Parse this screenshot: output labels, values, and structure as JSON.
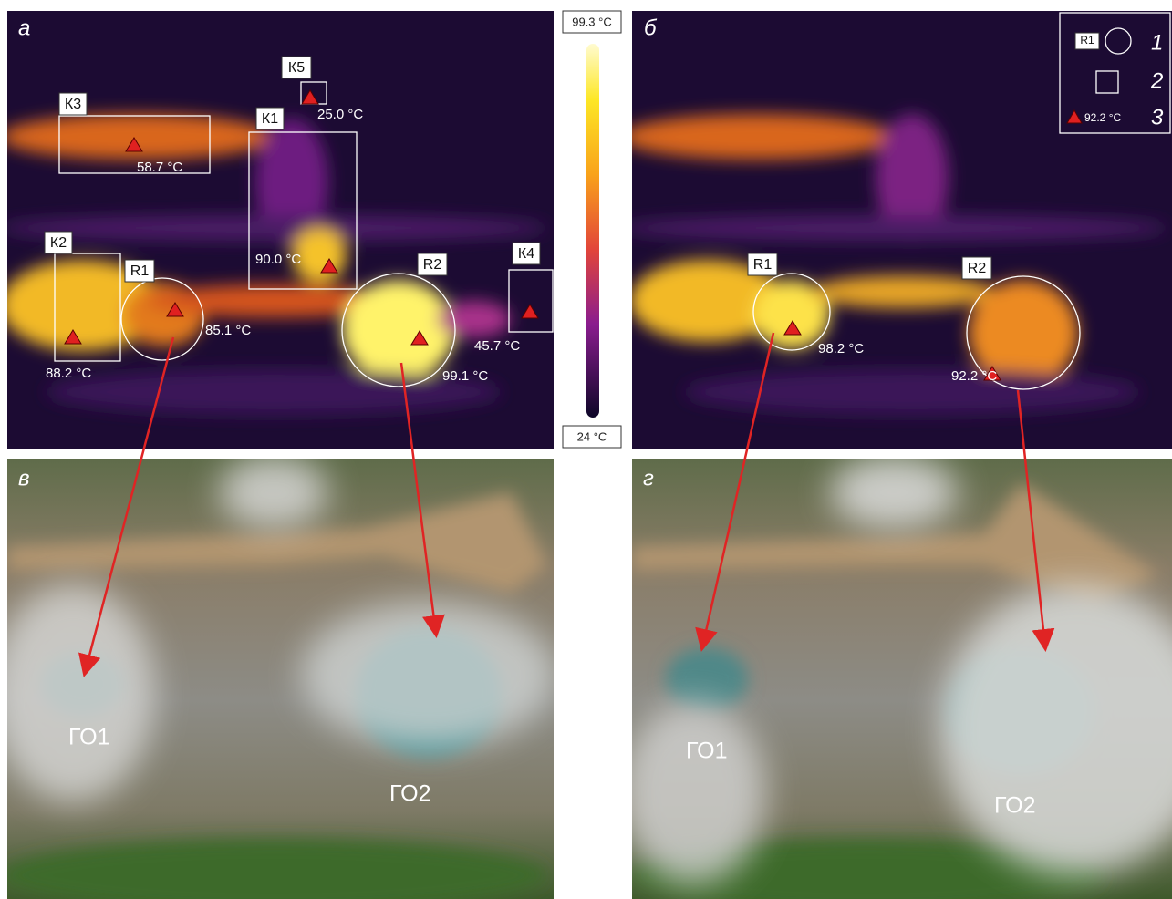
{
  "thermal_left": {
    "label": "а",
    "zones": [
      {
        "name": "К3",
        "temp": "58.7 °C"
      },
      {
        "name": "К5",
        "temp": "25.0 °C"
      },
      {
        "name": "К1",
        "temp": "90.0 °C"
      },
      {
        "name": "К2",
        "temp": "88.2 °C"
      },
      {
        "name": "К4",
        "temp": "45.7 °C"
      }
    ],
    "pools": [
      {
        "name": "R1",
        "temp": "85.1 °C"
      },
      {
        "name": "R2",
        "temp": "99.1 °C"
      }
    ]
  },
  "colorbar": {
    "max": "99.3 °C",
    "min": "24 °C"
  },
  "thermal_right": {
    "label": "б",
    "pools": [
      {
        "name": "R1",
        "temp": "98.2 °C"
      },
      {
        "name": "R2",
        "temp": "92.2 °C"
      }
    ],
    "legend": [
      {
        "key": "R1",
        "number": "1"
      },
      {
        "number": "2"
      },
      {
        "key": "92.2 °C",
        "number": "3"
      }
    ]
  },
  "photo_left": {
    "label": "в",
    "pools": [
      "ГО1",
      "ГО2"
    ]
  },
  "photo_right": {
    "label": "г",
    "pools": [
      "ГО1",
      "ГО2"
    ]
  }
}
